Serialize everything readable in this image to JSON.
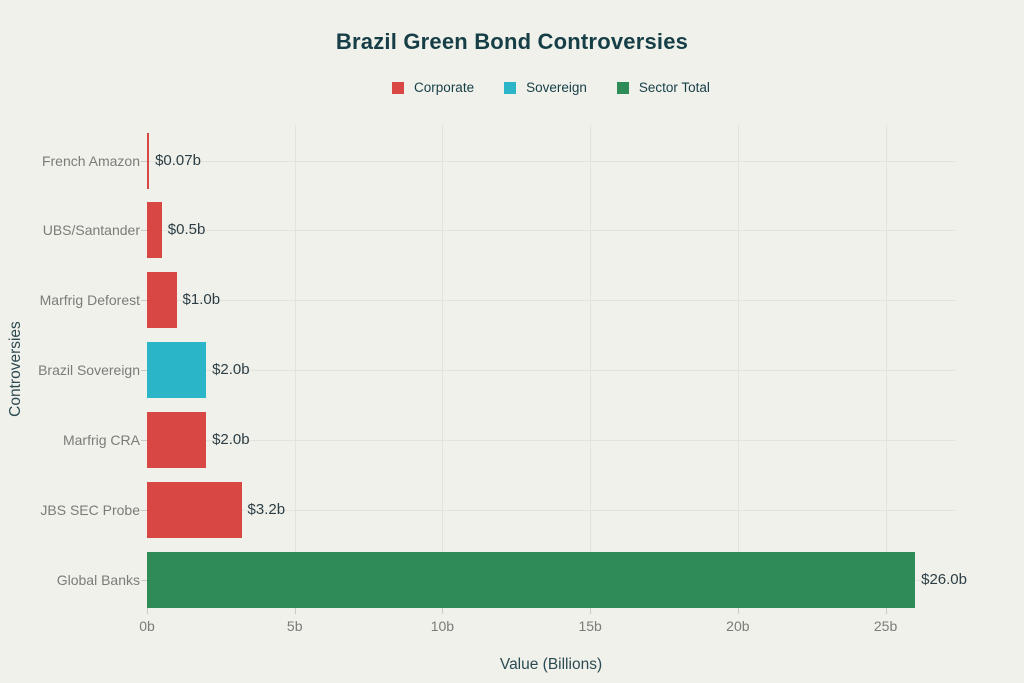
{
  "page": {
    "background": "#F0F1EB"
  },
  "chart_data": {
    "type": "bar",
    "orientation": "horizontal",
    "title": "Brazil Green Bond Controversies",
    "xlabel": "Value (Billions)",
    "ylabel": "Controversies",
    "categories": [
      "French Amazon",
      "UBS/Santander",
      "Marfrig Deforest",
      "Brazil Sovereign",
      "Marfrig CRA",
      "JBS SEC Probe",
      "Global Banks"
    ],
    "values": [
      0.07,
      0.5,
      1.0,
      2.0,
      2.0,
      3.2,
      26.0
    ],
    "value_labels": [
      "$0.07b",
      "$0.5b",
      "$1.0b",
      "$2.0b",
      "$2.0b",
      "$3.2b",
      "$26.0b"
    ],
    "bar_series": [
      "Corporate",
      "Corporate",
      "Corporate",
      "Sovereign",
      "Corporate",
      "Corporate",
      "Sector Total"
    ],
    "series": [
      {
        "name": "Corporate",
        "color": "#D94745"
      },
      {
        "name": "Sovereign",
        "color": "#2BB5C9"
      },
      {
        "name": "Sector Total",
        "color": "#2F8C58"
      }
    ],
    "x_ticks": [
      {
        "value": 0,
        "label": "0b"
      },
      {
        "value": 5,
        "label": "5b"
      },
      {
        "value": 10,
        "label": "10b"
      },
      {
        "value": 15,
        "label": "15b"
      },
      {
        "value": 20,
        "label": "20b"
      },
      {
        "value": 25,
        "label": "25b"
      }
    ],
    "xlim": [
      0,
      27.35
    ],
    "grid": true,
    "legend_position": "top-center",
    "colors": {
      "title_text": "#163E47",
      "axis_title_text": "#2C4A52",
      "tick_text": "#7A7C77",
      "value_text": "#2C3E45",
      "legend_text": "#163E47",
      "gridline": "#E2E3DC",
      "tick_mark": "#C9CAC2",
      "background": "#F0F1EB"
    }
  }
}
